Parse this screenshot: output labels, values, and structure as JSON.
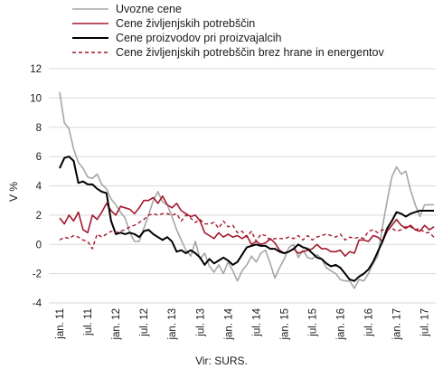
{
  "chart_data": {
    "type": "line",
    "ylabel": "V %",
    "ylim": [
      -4,
      12
    ],
    "yticks": [
      -4,
      -2,
      0,
      2,
      4,
      6,
      8,
      10,
      12
    ],
    "xlabels": [
      "jan. 11",
      "jul. 11",
      "jan. 12",
      "jul. 12",
      "jan. 13",
      "jul. 13",
      "jan. 14",
      "jul. 14",
      "jan. 15",
      "jul. 15",
      "jan. 16",
      "jul. 16",
      "jan. 17",
      "jul. 17"
    ],
    "x_start": "2011-01",
    "grid": "horizontal",
    "legend": "top",
    "series": [
      {
        "name": "Uvozne cene",
        "color": "#a6a6a6",
        "dash": "solid",
        "width": 1.6,
        "values": [
          10.4,
          8.3,
          7.9,
          6.5,
          5.6,
          5.2,
          4.6,
          4.5,
          4.8,
          4.1,
          3.8,
          3.1,
          2.7,
          2.2,
          1.8,
          0.8,
          0.2,
          0.2,
          1.1,
          2.0,
          3.0,
          3.6,
          2.9,
          2.7,
          1.9,
          1.0,
          0.3,
          -0.4,
          -0.8,
          0.2,
          -1.0,
          -0.6,
          -1.5,
          -1.9,
          -1.4,
          -2.0,
          -1.2,
          -1.8,
          -2.5,
          -1.8,
          -1.4,
          -0.8,
          -1.2,
          -0.6,
          -0.4,
          -1.3,
          -2.3,
          -1.6,
          -1.0,
          -0.2,
          0.0,
          -0.9,
          -0.4,
          -0.9,
          -1.0,
          -0.7,
          -1.0,
          -1.6,
          -1.8,
          -2.0,
          -2.4,
          -2.5,
          -2.5,
          -3.0,
          -2.4,
          -2.5,
          -2.0,
          -1.3,
          -0.8,
          1.2,
          3.0,
          4.6,
          5.3,
          4.8,
          5.0,
          3.7,
          2.7,
          1.9,
          2.7,
          2.7,
          2.7
        ]
      },
      {
        "name": "Cene življenjskih potrebščin",
        "color": "#a3182d",
        "dash": "solid",
        "width": 1.6,
        "values": [
          1.8,
          1.4,
          2.0,
          1.6,
          2.2,
          1.0,
          0.8,
          2.0,
          1.7,
          2.2,
          2.8,
          2.3,
          2.0,
          2.6,
          2.5,
          2.4,
          2.1,
          2.5,
          3.0,
          3.0,
          3.2,
          2.8,
          3.3,
          2.7,
          2.5,
          2.8,
          2.3,
          2.1,
          1.9,
          2.0,
          1.6,
          0.8,
          0.6,
          0.4,
          0.8,
          0.5,
          0.7,
          0.5,
          0.6,
          0.4,
          0.6,
          0.0,
          0.2,
          0.0,
          0.1,
          0.4,
          0.1,
          -0.4,
          -0.6,
          -0.5,
          -0.3,
          -0.6,
          -0.5,
          -0.4,
          -0.3,
          0.0,
          -0.3,
          -0.3,
          -0.5,
          -0.5,
          -0.4,
          -0.8,
          -0.5,
          -0.6,
          0.3,
          0.3,
          0.2,
          0.6,
          0.5,
          0.2,
          0.9,
          1.3,
          1.7,
          1.3,
          1.1,
          1.3,
          1.0,
          0.9,
          1.3,
          1.0,
          1.2
        ]
      },
      {
        "name": "Cene proizvodov pri proizvajalcih",
        "color": "#000000",
        "dash": "solid",
        "width": 2.0,
        "values": [
          5.2,
          5.9,
          6.0,
          5.7,
          4.2,
          4.3,
          4.1,
          4.1,
          3.8,
          3.6,
          3.5,
          1.6,
          0.7,
          0.8,
          0.7,
          0.8,
          0.7,
          0.5,
          0.9,
          1.0,
          0.7,
          0.5,
          0.3,
          0.5,
          0.2,
          -0.5,
          -0.4,
          -0.6,
          -0.4,
          -0.6,
          -0.9,
          -1.4,
          -1.0,
          -1.3,
          -1.1,
          -0.9,
          -1.1,
          -1.4,
          -1.2,
          -0.7,
          -0.2,
          -0.1,
          0.0,
          -0.1,
          -0.1,
          -0.3,
          -0.3,
          -0.5,
          -0.6,
          -0.5,
          -0.3,
          0.0,
          -0.2,
          -0.3,
          -0.6,
          -0.9,
          -1.0,
          -1.3,
          -1.5,
          -1.4,
          -1.6,
          -2.0,
          -2.4,
          -2.5,
          -2.2,
          -2.0,
          -1.7,
          -1.2,
          -0.5,
          0.2,
          1.1,
          1.6,
          2.2,
          2.1,
          1.9,
          2.1,
          2.2,
          2.3,
          2.3,
          2.3,
          2.3
        ]
      },
      {
        "name": "Cene življenjskih potrebščin brez hrane in energentov",
        "color": "#a3182d",
        "dash": "dashed",
        "width": 1.4,
        "values": [
          0.3,
          0.5,
          0.4,
          0.6,
          0.5,
          0.3,
          0.2,
          -0.3,
          0.7,
          0.5,
          0.7,
          0.9,
          0.8,
          0.9,
          1.0,
          1.2,
          1.3,
          1.5,
          1.7,
          2.0,
          2.1,
          2.0,
          2.1,
          2.1,
          2.0,
          2.1,
          1.6,
          2.0,
          1.8,
          1.5,
          1.7,
          1.4,
          1.4,
          1.5,
          1.1,
          1.6,
          1.2,
          1.3,
          0.8,
          0.9,
          0.5,
          0.9,
          0.2,
          0.7,
          0.6,
          0.3,
          0.4,
          0.4,
          0.4,
          0.5,
          0.4,
          0.6,
          0.3,
          0.6,
          0.3,
          0.5,
          0.6,
          0.7,
          0.6,
          0.5,
          0.7,
          0.3,
          0.5,
          0.4,
          0.5,
          0.4,
          0.9,
          1.0,
          0.8,
          1.0,
          1.0,
          1.1,
          0.9,
          1.0,
          1.2,
          1.2,
          1.0,
          1.1,
          0.8,
          0.8,
          0.5
        ]
      }
    ]
  },
  "source": "Vir: SURS."
}
